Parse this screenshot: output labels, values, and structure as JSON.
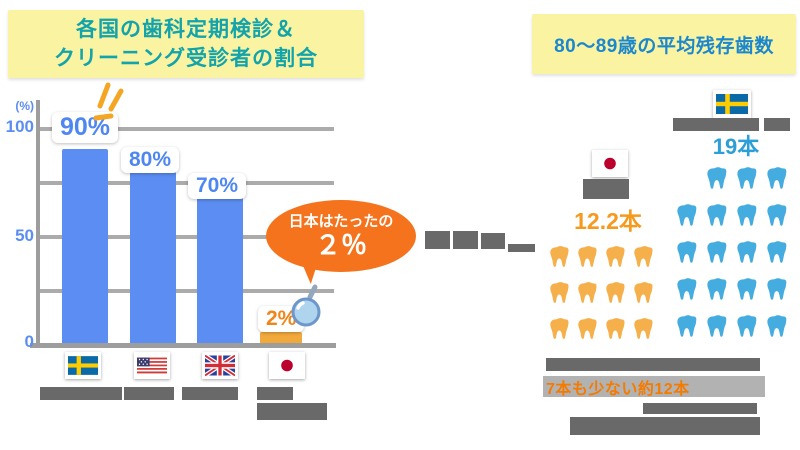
{
  "colors": {
    "title_background": "#faf3a2",
    "left_title_text": "#12a3ab",
    "right_title_text": "#1b87ce",
    "bar_blue": "#5b8df2",
    "bar_amber": "#f2a93c",
    "value_label_blue": "#4f87f2",
    "value_label_orange": "#f08519",
    "bubble_orange": "#f4731c",
    "tooth_orange": "#f5b04c",
    "tooth_blue": "#45ace0",
    "highlight_text_orange": "#f57b00",
    "axis_gray": "#9d9d9d"
  },
  "left_panel": {
    "title_line1": "各国の歯科定期検診＆",
    "title_line2": "クリーニング受診者の割合",
    "y_axis": {
      "unit": "(%)",
      "t100": "100",
      "t50": "50",
      "t0": "0"
    },
    "bars": [
      {
        "country": "スウェーデン",
        "flag": "sweden",
        "value": 90,
        "label": "90%",
        "color": "#5b8df2"
      },
      {
        "country": "アメリカ",
        "flag": "usa",
        "value": 80,
        "label": "80%",
        "color": "#5b8df2"
      },
      {
        "country": "イギリス",
        "flag": "uk",
        "value": 70,
        "label": "70%",
        "color": "#5b8df2"
      },
      {
        "country": "日本",
        "flag": "japan",
        "value": 2,
        "label": "2%",
        "color": "#f2a93c"
      }
    ],
    "callout": {
      "line1": "日本はたったの",
      "line2": "２％"
    }
  },
  "right_panel": {
    "title": "80〜89歳の平均残存歯数",
    "japan": {
      "country": "日本",
      "value_label": "12.2本",
      "teeth": {
        "count": 12,
        "per_row": 4,
        "color": "#f5b04c"
      }
    },
    "sweden": {
      "country": "スウェーデン",
      "value_label": "19本",
      "teeth": {
        "count": 19,
        "per_row": 4,
        "color": "#45ace0"
      }
    },
    "highlight_text": "7本も少ない約12本"
  },
  "chart_data": [
    {
      "type": "bar",
      "title": "各国の歯科定期検診＆クリーニング受診者の割合",
      "categories": [
        "スウェーデン",
        "アメリカ",
        "イギリス",
        "日本"
      ],
      "values": [
        90,
        80,
        70,
        2
      ],
      "xlabel": "",
      "ylabel": "(%)",
      "ylim": [
        0,
        100
      ],
      "yticks": [
        0,
        50,
        100
      ],
      "grid": true,
      "bar_colors": [
        "#5b8df2",
        "#5b8df2",
        "#5b8df2",
        "#f2a93c"
      ],
      "annotations": [
        "90%",
        "80%",
        "70%",
        "2%",
        "日本はたったの２％"
      ]
    },
    {
      "type": "bar",
      "style": "pictograph of tooth icons",
      "title": "80〜89歳の平均残存歯数",
      "categories": [
        "日本",
        "スウェーデン"
      ],
      "values": [
        12.2,
        19
      ],
      "unit": "本",
      "icon": "tooth",
      "annotations": [
        "12.2本",
        "19本",
        "7本も少ない約12本"
      ]
    }
  ]
}
